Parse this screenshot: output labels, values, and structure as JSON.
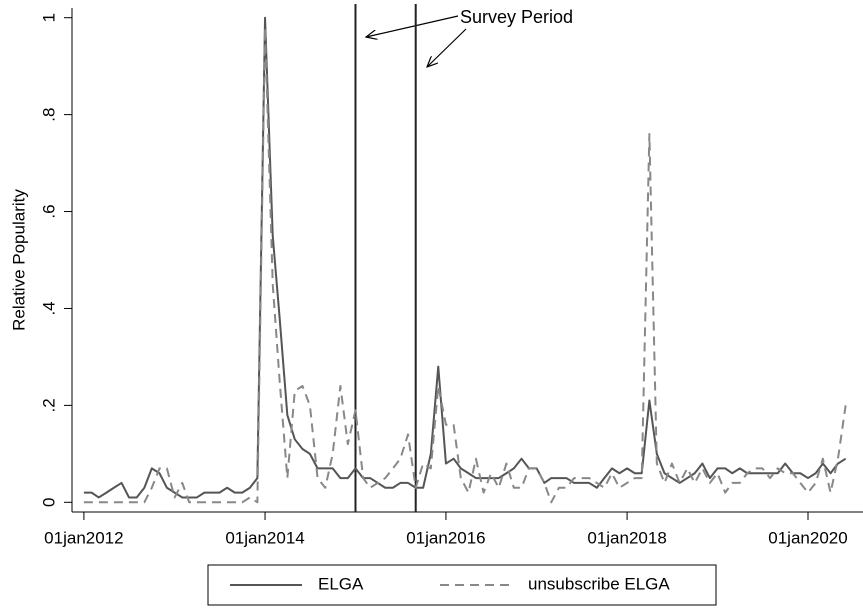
{
  "chart_data": {
    "type": "line",
    "y_label": "Relative Popularity",
    "annotation": "Survey Period",
    "survey_lines": [
      "2015-01-01",
      "2015-09-01"
    ],
    "x": [
      "2012-01-01",
      "2012-02-01",
      "2012-03-01",
      "2012-04-01",
      "2012-05-01",
      "2012-06-01",
      "2012-07-01",
      "2012-08-01",
      "2012-09-01",
      "2012-10-01",
      "2012-11-01",
      "2012-12-01",
      "2013-01-01",
      "2013-02-01",
      "2013-03-01",
      "2013-04-01",
      "2013-05-01",
      "2013-06-01",
      "2013-07-01",
      "2013-08-01",
      "2013-09-01",
      "2013-10-01",
      "2013-11-01",
      "2013-12-01",
      "2014-01-01",
      "2014-02-01",
      "2014-03-01",
      "2014-04-01",
      "2014-05-01",
      "2014-06-01",
      "2014-07-01",
      "2014-08-01",
      "2014-09-01",
      "2014-10-01",
      "2014-11-01",
      "2014-12-01",
      "2015-01-01",
      "2015-02-01",
      "2015-03-01",
      "2015-04-01",
      "2015-05-01",
      "2015-06-01",
      "2015-07-01",
      "2015-08-01",
      "2015-09-01",
      "2015-10-01",
      "2015-11-01",
      "2015-12-01",
      "2016-01-01",
      "2016-02-01",
      "2016-03-01",
      "2016-04-01",
      "2016-05-01",
      "2016-06-01",
      "2016-07-01",
      "2016-08-01",
      "2016-09-01",
      "2016-10-01",
      "2016-11-01",
      "2016-12-01",
      "2017-01-01",
      "2017-02-01",
      "2017-03-01",
      "2017-04-01",
      "2017-05-01",
      "2017-06-01",
      "2017-07-01",
      "2017-08-01",
      "2017-09-01",
      "2017-10-01",
      "2017-11-01",
      "2017-12-01",
      "2018-01-01",
      "2018-02-01",
      "2018-03-01",
      "2018-04-01",
      "2018-05-01",
      "2018-06-01",
      "2018-07-01",
      "2018-08-01",
      "2018-09-01",
      "2018-10-01",
      "2018-11-01",
      "2018-12-01",
      "2019-01-01",
      "2019-02-01",
      "2019-03-01",
      "2019-04-01",
      "2019-05-01",
      "2019-06-01",
      "2019-07-01",
      "2019-08-01",
      "2019-09-01",
      "2019-10-01",
      "2019-11-01",
      "2019-12-01",
      "2020-01-01",
      "2020-02-01",
      "2020-03-01",
      "2020-04-01",
      "2020-05-01",
      "2020-06-01"
    ],
    "series": [
      {
        "name": "ELGA",
        "color": "#555555",
        "dash": false,
        "values": [
          0.02,
          0.02,
          0.01,
          0.02,
          0.03,
          0.04,
          0.01,
          0.01,
          0.03,
          0.07,
          0.06,
          0.03,
          0.02,
          0.01,
          0.01,
          0.01,
          0.02,
          0.02,
          0.02,
          0.03,
          0.02,
          0.02,
          0.03,
          0.05,
          1.0,
          0.55,
          0.38,
          0.18,
          0.13,
          0.11,
          0.1,
          0.07,
          0.07,
          0.07,
          0.05,
          0.05,
          0.07,
          0.05,
          0.05,
          0.04,
          0.03,
          0.03,
          0.04,
          0.04,
          0.03,
          0.03,
          0.1,
          0.28,
          0.08,
          0.09,
          0.07,
          0.06,
          0.05,
          0.05,
          0.05,
          0.05,
          0.06,
          0.07,
          0.09,
          0.07,
          0.07,
          0.04,
          0.05,
          0.05,
          0.05,
          0.04,
          0.04,
          0.04,
          0.03,
          0.05,
          0.07,
          0.06,
          0.07,
          0.06,
          0.06,
          0.21,
          0.1,
          0.06,
          0.05,
          0.04,
          0.05,
          0.06,
          0.08,
          0.05,
          0.07,
          0.07,
          0.06,
          0.07,
          0.06,
          0.06,
          0.06,
          0.06,
          0.06,
          0.08,
          0.06,
          0.06,
          0.05,
          0.06,
          0.08,
          0.06,
          0.08,
          0.09
        ]
      },
      {
        "name": "unsubscribe ELGA",
        "color": "#888888",
        "dash": true,
        "values": [
          0,
          0,
          0,
          0,
          0,
          0,
          0,
          0,
          0,
          0.03,
          0.07,
          0.07,
          0.01,
          0.04,
          0,
          0,
          0,
          0,
          0,
          0,
          0,
          0,
          0.01,
          0,
          0.98,
          0.45,
          0.25,
          0.05,
          0.23,
          0.24,
          0.2,
          0.05,
          0.03,
          0.1,
          0.24,
          0.12,
          0.19,
          0.05,
          0.03,
          0.04,
          0.05,
          0.07,
          0.09,
          0.14,
          0.03,
          0.08,
          0.07,
          0.24,
          0.16,
          0.16,
          0.05,
          0.02,
          0.09,
          0.02,
          0.06,
          0.03,
          0.08,
          0.03,
          0.03,
          0.07,
          0.07,
          0.04,
          0,
          0.03,
          0.03,
          0.05,
          0.05,
          0.05,
          0.04,
          0.03,
          0.06,
          0.03,
          0.04,
          0.05,
          0.05,
          0.76,
          0.08,
          0.04,
          0.08,
          0.04,
          0.07,
          0.04,
          0.07,
          0.04,
          0.06,
          0.02,
          0.04,
          0.04,
          0.06,
          0.07,
          0.07,
          0.05,
          0.07,
          0.06,
          0.06,
          0.04,
          0.02,
          0.04,
          0.09,
          0.02,
          0.09,
          0.2
        ]
      }
    ],
    "xlim": [
      "2011-11-14",
      "2020-08-10"
    ],
    "xticks": [
      {
        "value": "2012-01-01",
        "label": "01jan2012"
      },
      {
        "value": "2014-01-01",
        "label": "01jan2014"
      },
      {
        "value": "2016-01-01",
        "label": "01jan2016"
      },
      {
        "value": "2018-01-01",
        "label": "01jan2018"
      },
      {
        "value": "2020-01-01",
        "label": "01jan2020"
      }
    ],
    "ylim": [
      -0.02,
      1.02
    ],
    "yticks": [
      0,
      {
        "value": 0.2,
        "label": ".2"
      },
      {
        "value": 0.4,
        "label": ".4"
      },
      {
        "value": 0.6,
        "label": ".6"
      },
      {
        "value": 0.8,
        "label": ".8"
      },
      1
    ],
    "legend": "bottom"
  }
}
